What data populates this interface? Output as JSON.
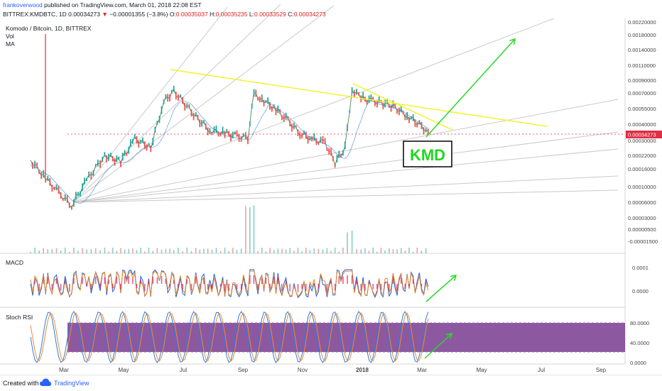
{
  "header": {
    "author": "frankoverwood",
    "published": "published on TradingView.com, March 01, 2018 22:08 EST",
    "symbol": "BITTREX:KMDBTC, 1D",
    "last": "0.00034273",
    "change": "−0.00001355 (−3.8%)",
    "o_label": "O:",
    "o_value": "0.00035037",
    "h_label": "H:",
    "h_value": "0.00035235",
    "l_label": "L:",
    "l_value": "0.00033529",
    "c_label": "C:",
    "c_value": "0.00034273"
  },
  "legend": {
    "title": "Komodo / Bitcoin, 1D, BITTREX",
    "vol": "Vol",
    "ma": "MA"
  },
  "annotation": {
    "label": "KMD"
  },
  "panes": {
    "macd": "MACD",
    "stoch": "Stoch RSI"
  },
  "footer": {
    "created": "Created with",
    "brand": "TradingView"
  },
  "colors": {
    "up": "#26a69a",
    "down": "#ef5350",
    "trendline": "#f5f01e",
    "arrow": "#25d92a",
    "kmd": "#1fd81f",
    "price_tag": "#e02f44",
    "stoch_band": "#6b2a86"
  },
  "chart_data": [
    {
      "type": "candlestick",
      "title": "Komodo / Bitcoin, 1D, BITTREX",
      "x_tick_labels": [
        "Mar",
        "May",
        "Jul",
        "Sep",
        "Nov",
        "2018",
        "Mar",
        "May",
        "Jul",
        "Sep"
      ],
      "y_tick_labels": [
        "0.00220000",
        "0.00180000",
        "0.00140000",
        "0.00110000",
        "0.00090000",
        "0.00070000",
        "0.00055000",
        "0.00040000",
        "0.00030000",
        "0.00022000",
        "0.00016000",
        "0.00010000",
        "0.00006000",
        "0.00003000",
        "0.00000500",
        "-0.00001500"
      ],
      "current_price_tag": "0.00034273",
      "scale": "log",
      "close_series": {
        "date": [
          "2017-01-28",
          "2017-02-12",
          "2017-02-25",
          "2017-03-10",
          "2017-03-25",
          "2017-04-12",
          "2017-04-28",
          "2017-05-12",
          "2017-05-28",
          "2017-06-10",
          "2017-06-20",
          "2017-07-01",
          "2017-07-12",
          "2017-07-26",
          "2017-08-10",
          "2017-08-22",
          "2017-09-02",
          "2017-09-08",
          "2017-09-16",
          "2017-09-30",
          "2017-10-12",
          "2017-10-24",
          "2017-11-05",
          "2017-11-18",
          "2017-11-28",
          "2017-12-08",
          "2017-12-15",
          "2017-12-24",
          "2018-01-05",
          "2018-01-15",
          "2018-01-25",
          "2018-02-08",
          "2018-02-18",
          "2018-03-01"
        ],
        "close": [
          0.000185,
          0.000125,
          9.2e-05,
          7e-05,
          0.00012,
          0.000205,
          0.00018,
          0.00029,
          0.000245,
          0.00065,
          0.00082,
          0.00062,
          0.00047,
          0.00035,
          0.00033,
          0.00031,
          0.0003,
          0.00076,
          0.00069,
          0.00055,
          0.00043,
          0.00033,
          0.00029,
          0.00027,
          0.000175,
          0.00024,
          0.00085,
          0.0007,
          0.00066,
          0.00063,
          0.00059,
          0.00048,
          0.00041,
          0.00034273
        ]
      }
    },
    {
      "type": "bar",
      "title": "Vol"
    },
    {
      "type": "line",
      "title": "MACD",
      "y_tick_labels": [
        "0.0001",
        "0.0000"
      ]
    },
    {
      "type": "line",
      "title": "Stoch RSI",
      "y_tick_labels": [
        "80.0000",
        "40.0000",
        "0.0000"
      ],
      "band": [
        20,
        80
      ]
    }
  ]
}
